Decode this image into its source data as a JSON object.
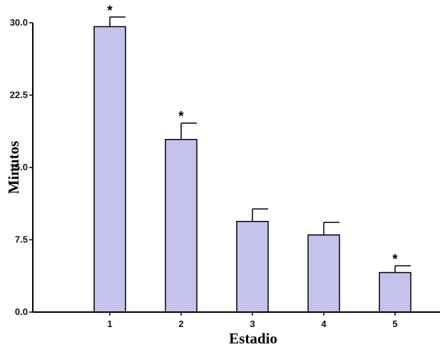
{
  "chart_data": {
    "type": "bar",
    "categories": [
      "1",
      "2",
      "3",
      "4",
      "5"
    ],
    "values": [
      29.6,
      17.9,
      9.4,
      8.0,
      4.1
    ],
    "error_upper": [
      30.6,
      19.6,
      10.7,
      9.3,
      4.8
    ],
    "significance": [
      "*",
      "*",
      "",
      "",
      "*"
    ],
    "xlabel": "Estadio",
    "ylabel": "Minutos",
    "ylim": [
      0,
      30
    ],
    "yticks": [
      "0.0",
      "7.5",
      "15.0",
      "22.5",
      "30.0"
    ],
    "grid": false,
    "bar_color": "#c5c3ec",
    "bar_edge_color": "#000000"
  }
}
